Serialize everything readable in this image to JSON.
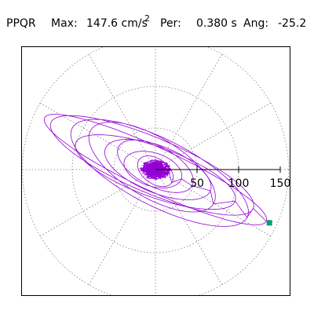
{
  "header": {
    "station": "PPQR",
    "max_label": "Max:",
    "max_value": "147.6 cm/s",
    "max_exponent": "2",
    "per_label": "Per:",
    "per_value": "0.380 s",
    "ang_label": "Ang:",
    "ang_value": "-25.2"
  },
  "chart_data": {
    "type": "polar orbit (particle motion)",
    "max_amplitude": 147.6,
    "units": "cm/s^2",
    "period_s": 0.38,
    "angle_deg": -25.2,
    "r_ticks": [
      50,
      100,
      150
    ],
    "r_tick_labels": [
      "50",
      "100",
      "150"
    ],
    "r_max": 160,
    "angular_grid_deg": [
      0,
      30,
      60,
      90,
      120,
      150,
      180,
      210,
      240,
      270,
      300,
      330
    ],
    "grid": true,
    "grid_style": "dotted",
    "colors": {
      "trace": "#9400d3",
      "end_marker": "#00a070",
      "grid": "#808080",
      "axis": "#000000"
    },
    "end_point": {
      "x": 137,
      "y": -64
    },
    "loops": [
      {
        "a": 147,
        "b": 26,
        "rot": -25,
        "dx": 0,
        "dy": 0
      },
      {
        "a": 132,
        "b": 33,
        "rot": -23,
        "dx": -4,
        "dy": 5
      },
      {
        "a": 118,
        "b": 40,
        "rot": -27,
        "dx": 5,
        "dy": -4
      },
      {
        "a": 102,
        "b": 30,
        "rot": -20,
        "dx": 0,
        "dy": -3
      },
      {
        "a": 86,
        "b": 36,
        "rot": -31,
        "dx": -4,
        "dy": 3
      },
      {
        "a": 68,
        "b": 28,
        "rot": -22,
        "dx": 3,
        "dy": 0
      },
      {
        "a": 50,
        "b": 24,
        "rot": -28,
        "dx": 0,
        "dy": 4
      },
      {
        "a": 36,
        "b": 20,
        "rot": -18,
        "dx": -3,
        "dy": 0
      },
      {
        "a": 24,
        "b": 15,
        "rot": -35,
        "dx": 0,
        "dy": -2
      },
      {
        "a": 15,
        "b": 10,
        "rot": -10,
        "dx": 1,
        "dy": 1
      }
    ]
  }
}
